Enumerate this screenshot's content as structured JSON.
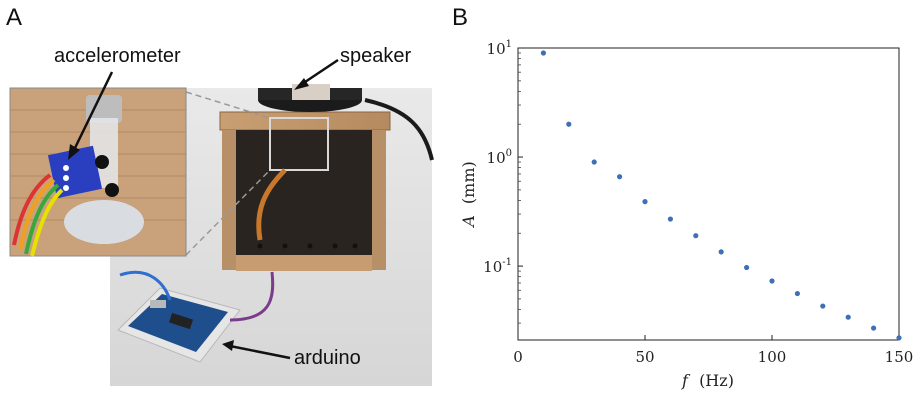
{
  "panels": {
    "a_label": "A",
    "b_label": "B"
  },
  "photo": {
    "labels": {
      "accelerometer": "accelerometer",
      "speaker": "speaker",
      "arduino": "arduino"
    }
  },
  "chart_data": {
    "type": "scatter",
    "x": [
      10,
      20,
      30,
      40,
      50,
      60,
      70,
      80,
      90,
      100,
      110,
      120,
      130,
      140,
      150
    ],
    "y": [
      9.0,
      2.0,
      0.9,
      0.66,
      0.39,
      0.27,
      0.19,
      0.135,
      0.097,
      0.073,
      0.056,
      0.043,
      0.034,
      0.027,
      0.022
    ],
    "xlabel_var": "f",
    "xlabel_unit": "(Hz)",
    "ylabel_var": "A",
    "ylabel_unit": "(mm)",
    "xlim": [
      0,
      150
    ],
    "ylim": [
      0.021,
      10
    ],
    "yscale": "log",
    "xticks": [
      0,
      50,
      100,
      150
    ],
    "yticks": [
      {
        "value": 10,
        "base": "10",
        "exp": "1"
      },
      {
        "value": 1,
        "base": "10",
        "exp": "0"
      },
      {
        "value": 0.1,
        "base": "10",
        "exp": "-1"
      }
    ],
    "marker_color": "#3f6fb5",
    "grid": false
  }
}
